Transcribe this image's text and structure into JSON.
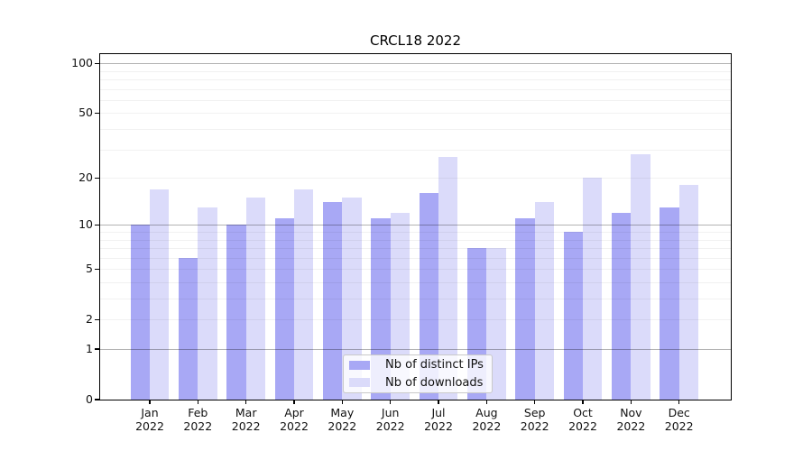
{
  "chart_data": {
    "type": "bar",
    "title": "CRCL18 2022",
    "categories": [
      "Jan",
      "Feb",
      "Mar",
      "Apr",
      "May",
      "Jun",
      "Jul",
      "Aug",
      "Sep",
      "Oct",
      "Nov",
      "Dec"
    ],
    "category_year": "2022",
    "series": [
      {
        "name": "Nb of distinct IPs",
        "color": "#a8a8f5",
        "values": [
          10,
          6,
          10,
          11,
          14,
          11,
          16,
          7,
          11,
          9,
          12,
          13
        ]
      },
      {
        "name": "Nb of downloads",
        "color": "#dbdbfa",
        "values": [
          17,
          13,
          15,
          17,
          15,
          12,
          27,
          7,
          14,
          20,
          28,
          18
        ]
      }
    ],
    "y_scale": "log10(value+1)",
    "y_ticks": [
      0,
      1,
      2,
      5,
      10,
      20,
      50,
      100
    ],
    "y_major_gridlines": [
      1,
      10,
      100
    ],
    "y_minor_gridlines": [
      2,
      3,
      4,
      5,
      6,
      7,
      8,
      9,
      20,
      30,
      40,
      50,
      60,
      70,
      80,
      90
    ],
    "ylim": [
      0,
      115
    ],
    "xlabel": "",
    "ylabel": "",
    "grid": "on",
    "legend_position": "lower center"
  }
}
